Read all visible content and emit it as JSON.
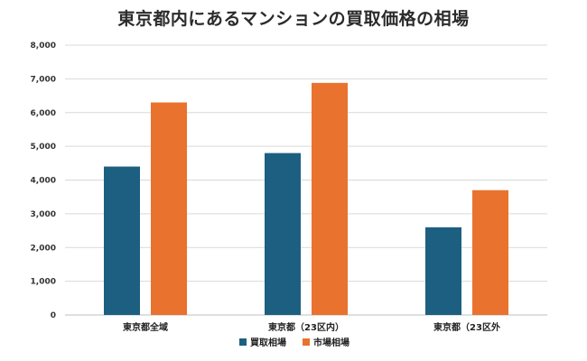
{
  "chart_data": {
    "type": "bar",
    "title": "東京都内にあるマンションの買取価格の相場",
    "categories": [
      "東京都全域",
      "東京都（23区内）",
      "東京都（23区外"
    ],
    "series": [
      {
        "name": "買取相場",
        "values": [
          4400,
          4800,
          2600
        ],
        "color": "#1d5f80"
      },
      {
        "name": "市場相場",
        "values": [
          6300,
          6880,
          3700
        ],
        "color": "#e9722e"
      }
    ],
    "ylim": [
      0,
      8000
    ],
    "yticks": [
      0,
      1000,
      2000,
      3000,
      4000,
      5000,
      6000,
      7000,
      8000
    ],
    "ytick_labels": [
      "0",
      "1,000",
      "2,000",
      "3,000",
      "4,000",
      "5,000",
      "6,000",
      "7,000",
      "8,000"
    ],
    "grid": true,
    "legend_position": "bottom-center",
    "xlabel": "",
    "ylabel": ""
  }
}
